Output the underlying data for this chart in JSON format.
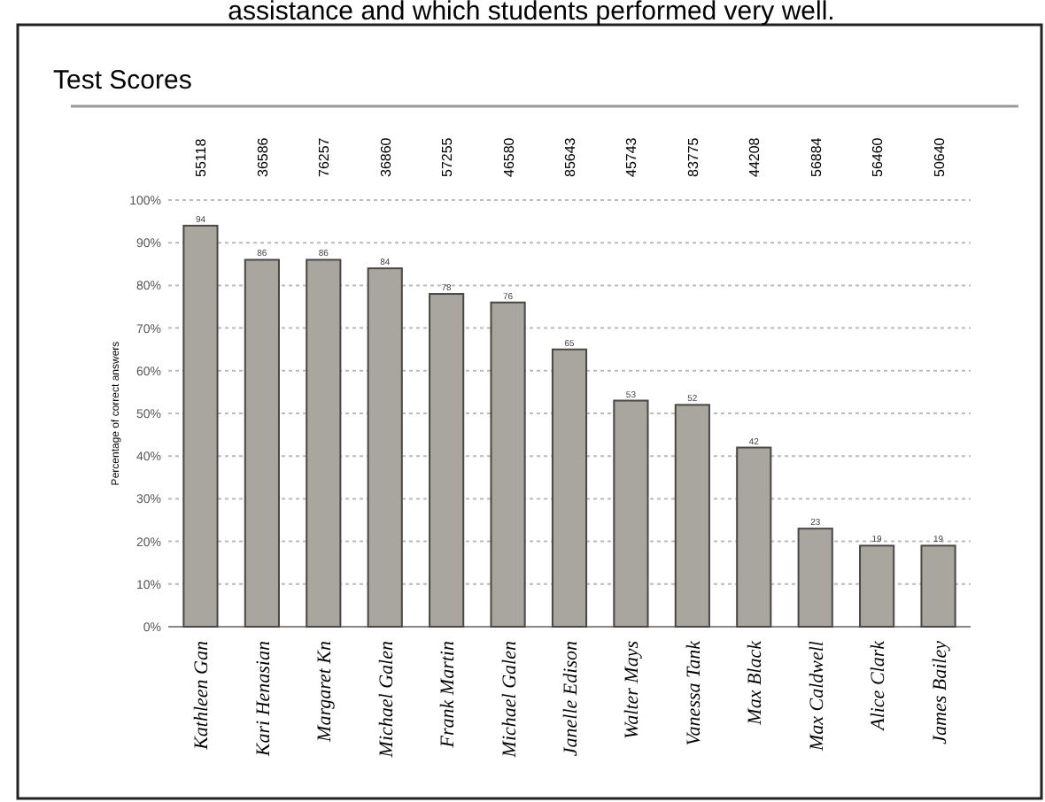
{
  "chart_data": {
    "type": "bar",
    "title": "Test Scores",
    "ylabel": "Percentage of correct answers",
    "categories": [
      "Kathleen Gan",
      "Kari Henasian",
      "Margaret Kn",
      "Michael Galen",
      "Frank Martin",
      "Michael Galen",
      "Janelle Edison",
      "Walter Mays",
      "Vanessa Tank",
      "Max Black",
      "Max Caldwell",
      "Alice Clark",
      "James Bailey"
    ],
    "values": [
      94,
      86,
      86,
      84,
      78,
      76,
      65,
      53,
      52,
      42,
      23,
      19,
      19
    ],
    "color": "#a9a59f",
    "data_labels": true,
    "grid": "y",
    "ylim": [
      0,
      100
    ],
    "yticks": [
      {
        "value": 0,
        "label": "0%"
      },
      {
        "value": 10,
        "label": "10%"
      },
      {
        "value": 20,
        "label": "20%"
      },
      {
        "value": 30,
        "label": "30%"
      },
      {
        "value": 40,
        "label": "40%"
      },
      {
        "value": 50,
        "label": "50%"
      },
      {
        "value": 60,
        "label": "60%"
      },
      {
        "value": 70,
        "label": "70%"
      },
      {
        "value": 80,
        "label": "80%"
      },
      {
        "value": 90,
        "label": "90%"
      },
      {
        "value": 100,
        "label": "100%"
      }
    ],
    "annotations": [
      "assistance and which students performed very well.",
      "55118",
      "36586",
      "76257",
      "36860",
      "57255",
      "46580",
      "85643",
      "45743",
      "83775",
      "44208",
      "56884",
      "56460",
      "50640"
    ]
  }
}
